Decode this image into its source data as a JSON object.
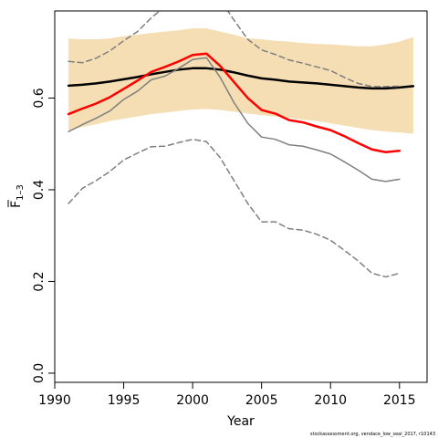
{
  "chart_data": {
    "type": "line",
    "xlabel": "Year",
    "ylabel": "F",
    "ylabel_sub": "1–3",
    "xlim": [
      1990,
      2017
    ],
    "ylim": [
      -0.02,
      0.79
    ],
    "xticks": [
      1990,
      1995,
      2000,
      2005,
      2010,
      2015
    ],
    "yticks": [
      0.0,
      0.2,
      0.4,
      0.6
    ],
    "yticklabels": [
      "0.0",
      "0.2",
      "0.4",
      "0.6"
    ],
    "credit": "stockassessment.org, vendace_low_seal_2017, r10143",
    "confidence_band": {
      "color": "#f5deb3",
      "x": [
        1991,
        1992,
        1993,
        1994,
        1995,
        1996,
        1997,
        1998,
        1999,
        2000,
        2001,
        2002,
        2003,
        2004,
        2005,
        2006,
        2007,
        2008,
        2009,
        2010,
        2011,
        2012,
        2013,
        2014,
        2015,
        2016
      ],
      "upper": [
        0.73,
        0.728,
        0.728,
        0.73,
        0.735,
        0.738,
        0.742,
        0.745,
        0.748,
        0.752,
        0.752,
        0.745,
        0.738,
        0.73,
        0.728,
        0.725,
        0.723,
        0.72,
        0.718,
        0.717,
        0.715,
        0.713,
        0.713,
        0.717,
        0.723,
        0.733
      ],
      "lower": [
        0.53,
        0.537,
        0.543,
        0.55,
        0.555,
        0.56,
        0.565,
        0.568,
        0.572,
        0.575,
        0.576,
        0.574,
        0.57,
        0.566,
        0.563,
        0.56,
        0.557,
        0.553,
        0.55,
        0.545,
        0.54,
        0.535,
        0.53,
        0.527,
        0.525,
        0.522
      ]
    },
    "series": [
      {
        "role": "estimate",
        "color": "#000000",
        "width": 2.5,
        "dash": "",
        "x": [
          1991,
          1992,
          1993,
          1994,
          1995,
          1996,
          1997,
          1998,
          1999,
          2000,
          2001,
          2002,
          2003,
          2004,
          2005,
          2006,
          2007,
          2008,
          2009,
          2010,
          2011,
          2012,
          2013,
          2014,
          2015,
          2016
        ],
        "values": [
          0.627,
          0.629,
          0.632,
          0.636,
          0.641,
          0.646,
          0.652,
          0.657,
          0.662,
          0.665,
          0.665,
          0.662,
          0.656,
          0.649,
          0.643,
          0.64,
          0.636,
          0.634,
          0.632,
          0.629,
          0.626,
          0.623,
          0.621,
          0.621,
          0.623,
          0.626
        ]
      },
      {
        "role": "retro-estimate",
        "color": "#ff0000",
        "width": 2.5,
        "dash": "",
        "x": [
          1991,
          1992,
          1993,
          1994,
          1995,
          1996,
          1997,
          1998,
          1999,
          2000,
          2001,
          2002,
          2003,
          2004,
          2005,
          2006,
          2007,
          2008,
          2009,
          2010,
          2011,
          2012,
          2013,
          2014,
          2015
        ],
        "values": [
          0.565,
          0.577,
          0.588,
          0.602,
          0.62,
          0.638,
          0.657,
          0.668,
          0.68,
          0.694,
          0.697,
          0.67,
          0.635,
          0.6,
          0.574,
          0.566,
          0.552,
          0.547,
          0.538,
          0.53,
          0.517,
          0.502,
          0.488,
          0.482,
          0.485
        ]
      },
      {
        "role": "retro-estimate",
        "color": "#7f7f7f",
        "width": 1.5,
        "dash": "",
        "x": [
          1991,
          1992,
          1993,
          1994,
          1995,
          1996,
          1997,
          1998,
          1999,
          2000,
          2001,
          2002,
          2003,
          2004,
          2005,
          2006,
          2007,
          2008,
          2009,
          2010,
          2011,
          2012,
          2013,
          2014,
          2015
        ],
        "values": [
          0.527,
          0.542,
          0.556,
          0.572,
          0.597,
          0.615,
          0.64,
          0.648,
          0.665,
          0.684,
          0.688,
          0.645,
          0.59,
          0.545,
          0.515,
          0.51,
          0.498,
          0.495,
          0.487,
          0.478,
          0.461,
          0.443,
          0.423,
          0.418,
          0.423
        ]
      },
      {
        "role": "retro-bound",
        "color": "#7f7f7f",
        "width": 1.5,
        "dash": "6,4",
        "x": [
          1991,
          1992,
          1993,
          1994,
          1995,
          1996,
          1997,
          1998,
          1999,
          2000,
          2001,
          2002,
          2003,
          2004,
          2005,
          2006,
          2007,
          2008,
          2009,
          2010,
          2011,
          2012,
          2013,
          2014,
          2015
        ],
        "values": [
          0.68,
          0.677,
          0.687,
          0.703,
          0.725,
          0.745,
          0.775,
          0.8,
          0.82,
          0.84,
          0.84,
          0.815,
          0.77,
          0.728,
          0.705,
          0.695,
          0.683,
          0.676,
          0.668,
          0.66,
          0.645,
          0.632,
          0.625,
          0.625,
          0.626
        ]
      },
      {
        "role": "retro-bound",
        "color": "#7f7f7f",
        "width": 1.5,
        "dash": "6,4",
        "x": [
          1991,
          1992,
          1993,
          1994,
          1995,
          1996,
          1997,
          1998,
          1999,
          2000,
          2001,
          2002,
          2003,
          2004,
          2005,
          2006,
          2007,
          2008,
          2009,
          2010,
          2011,
          2012,
          2013,
          2014,
          2015
        ],
        "values": [
          0.37,
          0.403,
          0.42,
          0.44,
          0.465,
          0.48,
          0.494,
          0.495,
          0.503,
          0.51,
          0.505,
          0.47,
          0.42,
          0.37,
          0.33,
          0.33,
          0.315,
          0.312,
          0.303,
          0.29,
          0.268,
          0.245,
          0.218,
          0.21,
          0.218
        ]
      }
    ]
  }
}
